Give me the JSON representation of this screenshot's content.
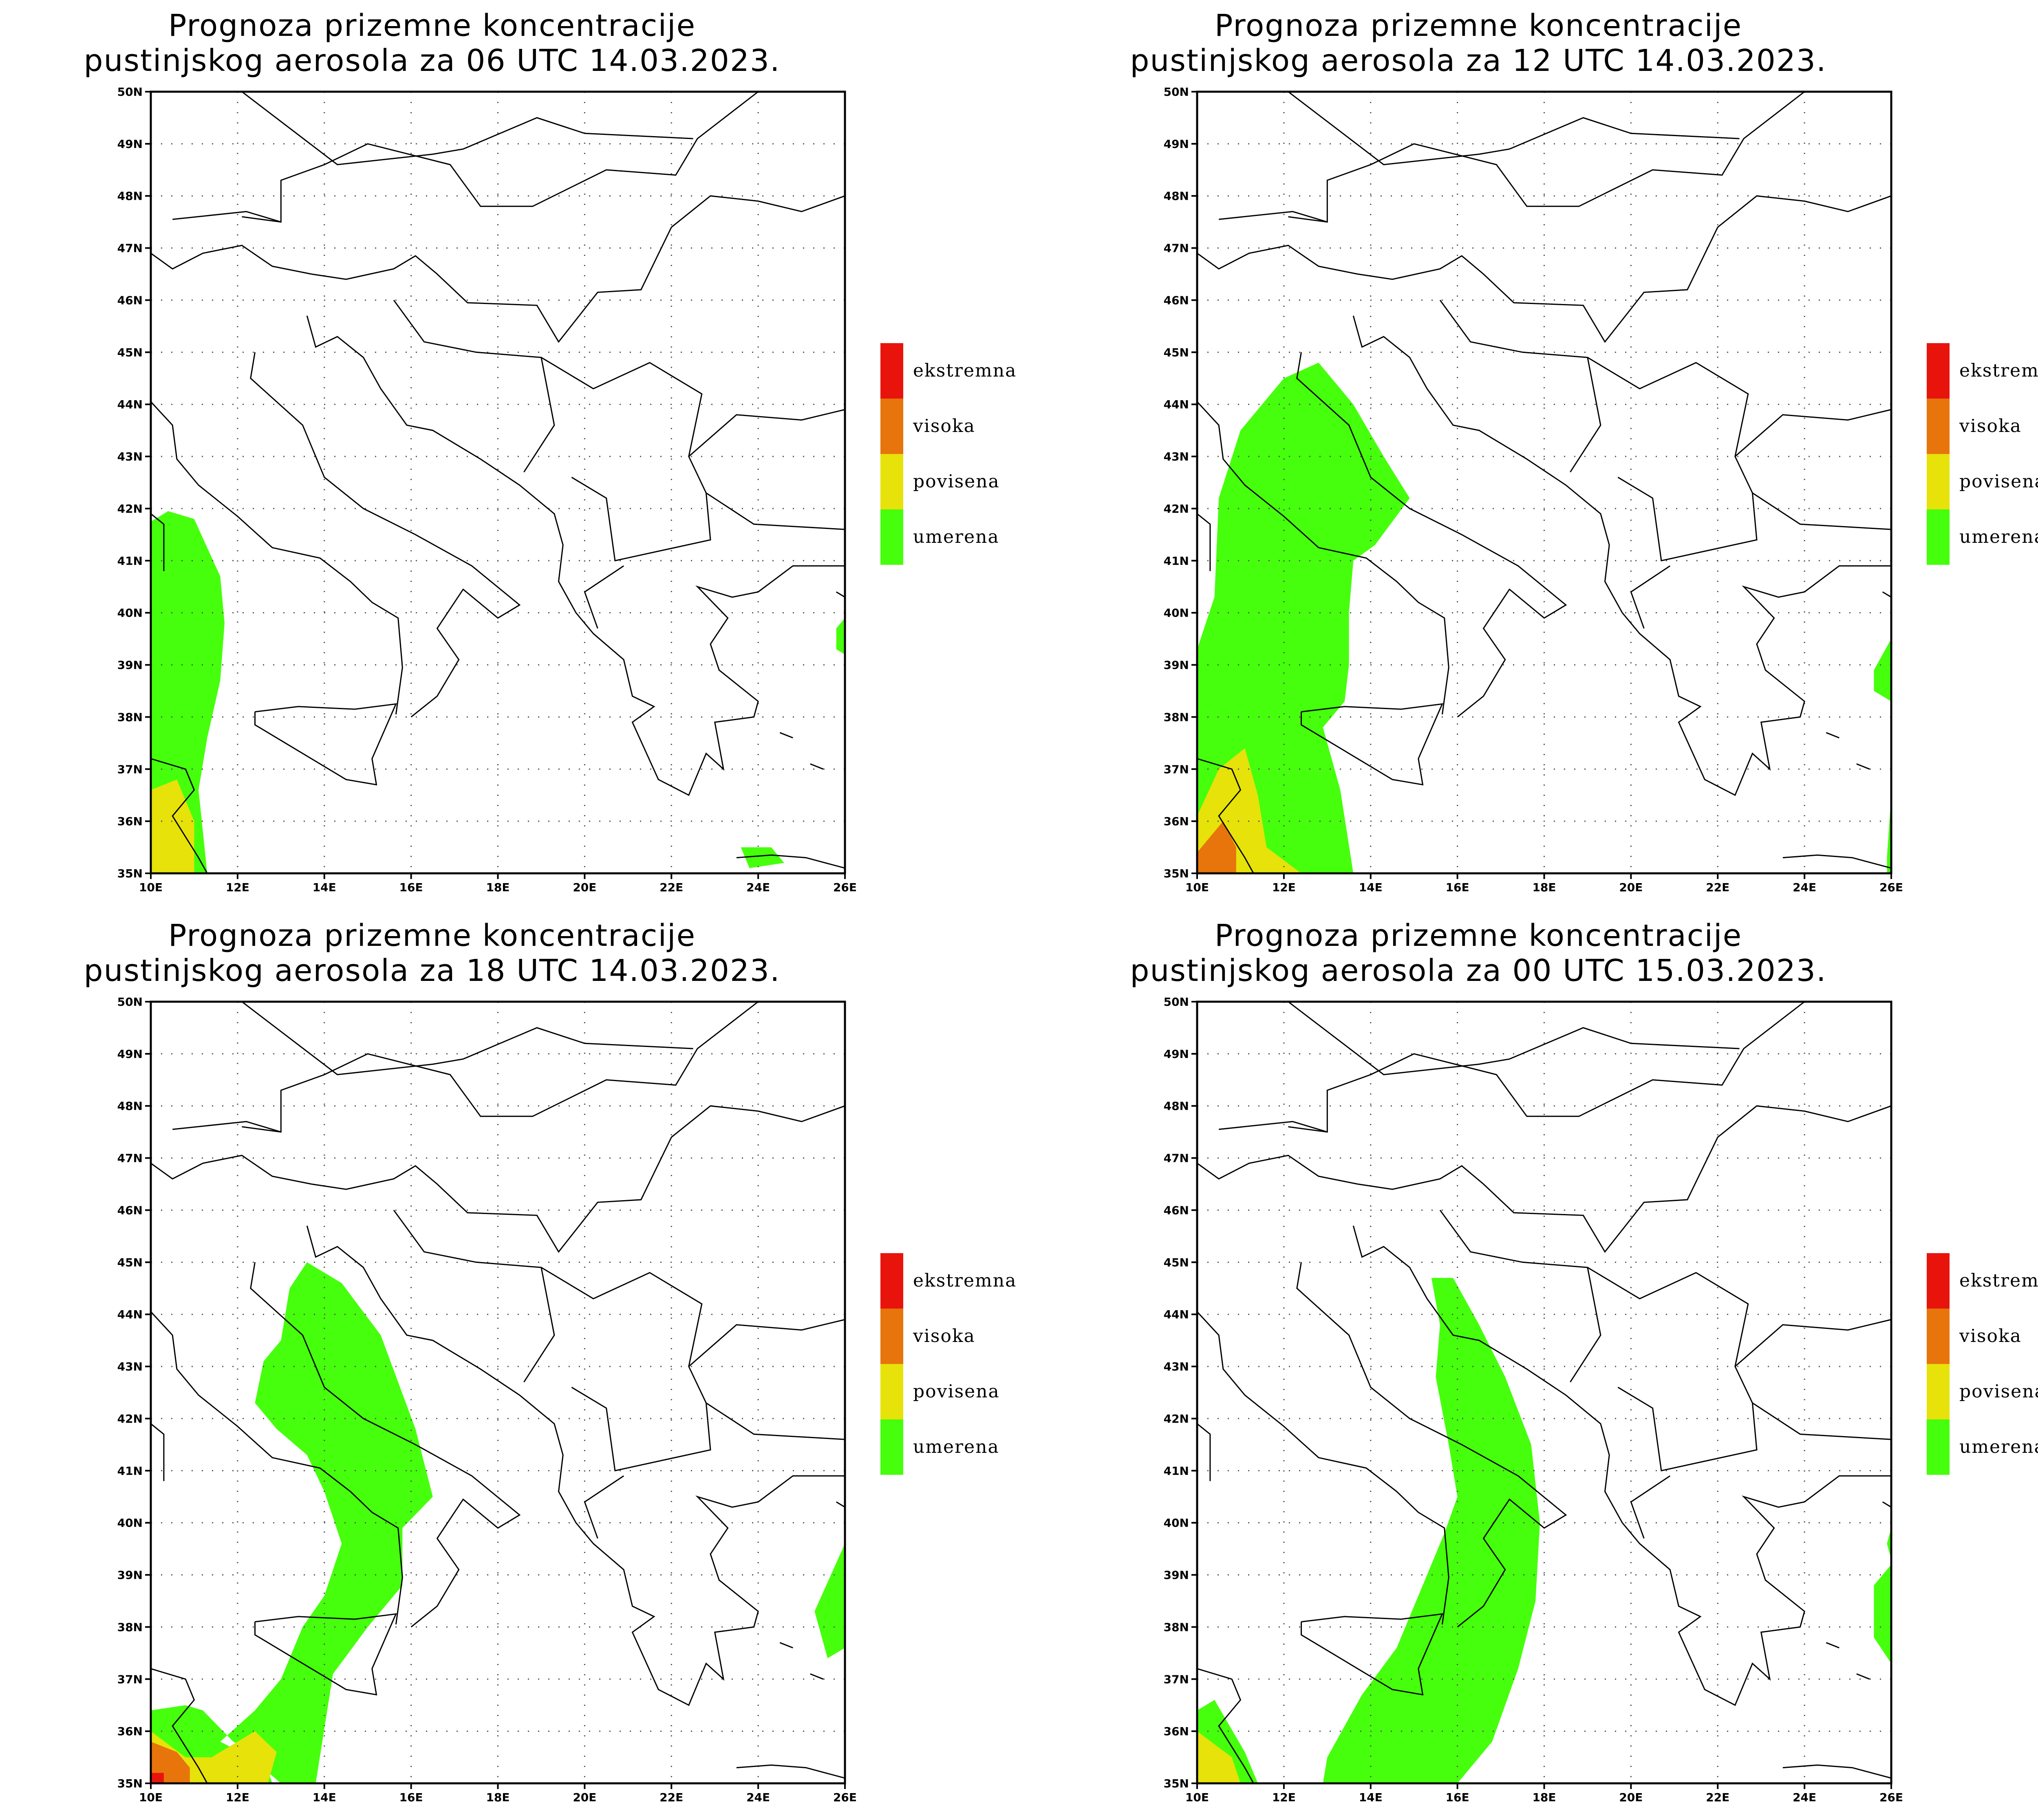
{
  "legend": {
    "items": [
      {
        "label": "ekstremna",
        "color": "#e8140c"
      },
      {
        "label": "visoka",
        "color": "#e8740c"
      },
      {
        "label": "povisena",
        "color": "#e6e20a"
      },
      {
        "label": "umerena",
        "color": "#46ff0c"
      }
    ]
  },
  "axes": {
    "lat_labels": [
      "50N",
      "49N",
      "48N",
      "47N",
      "46N",
      "45N",
      "44N",
      "43N",
      "42N",
      "41N",
      "40N",
      "39N",
      "38N",
      "37N",
      "36N",
      "35N"
    ],
    "lon_labels": [
      "10E",
      "12E",
      "14E",
      "16E",
      "18E",
      "20E",
      "22E",
      "24E",
      "26E"
    ]
  },
  "panels": [
    {
      "title_line1": "Prognoza prizemne koncentracije",
      "title_line2": "pustinjskog aerosola za 06 UTC 14.03.2023."
    },
    {
      "title_line1": "Prognoza prizemne koncentracije",
      "title_line2": "pustinjskog aerosola za 12 UTC 14.03.2023."
    },
    {
      "title_line1": "Prognoza prizemne koncentracije",
      "title_line2": "pustinjskog aerosola za 18 UTC 14.03.2023."
    },
    {
      "title_line1": "Prognoza prizemne koncentracije",
      "title_line2": "pustinjskog aerosola za 00 UTC 15.03.2023."
    }
  ]
}
